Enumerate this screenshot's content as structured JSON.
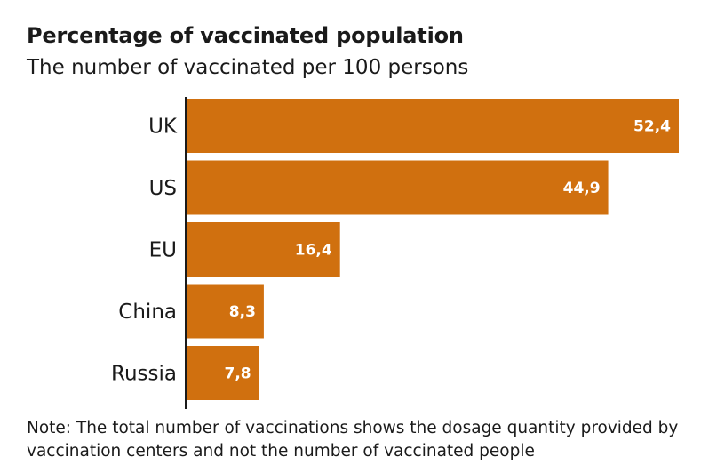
{
  "chart_data": {
    "type": "bar",
    "orientation": "horizontal",
    "title": "Percentage of vaccinated population",
    "subtitle": "The number of vaccinated per 100 persons",
    "categories": [
      "UK",
      "US",
      "EU",
      "China",
      "Russia"
    ],
    "values": [
      52.4,
      44.9,
      16.4,
      8.3,
      7.8
    ],
    "value_labels": [
      "52,4",
      "44,9",
      "16,4",
      "8,3",
      "7,8"
    ],
    "xlim": [
      0,
      52.4
    ],
    "grid": false,
    "legend": "none",
    "colors": {
      "bar": "#D0700F",
      "axis": "#1a1a1a",
      "value_text": "#ffffff"
    }
  },
  "note": "Note: The total number of vaccinations shows the dosage quantity provided by vaccination centers and not the number of vaccinated people"
}
